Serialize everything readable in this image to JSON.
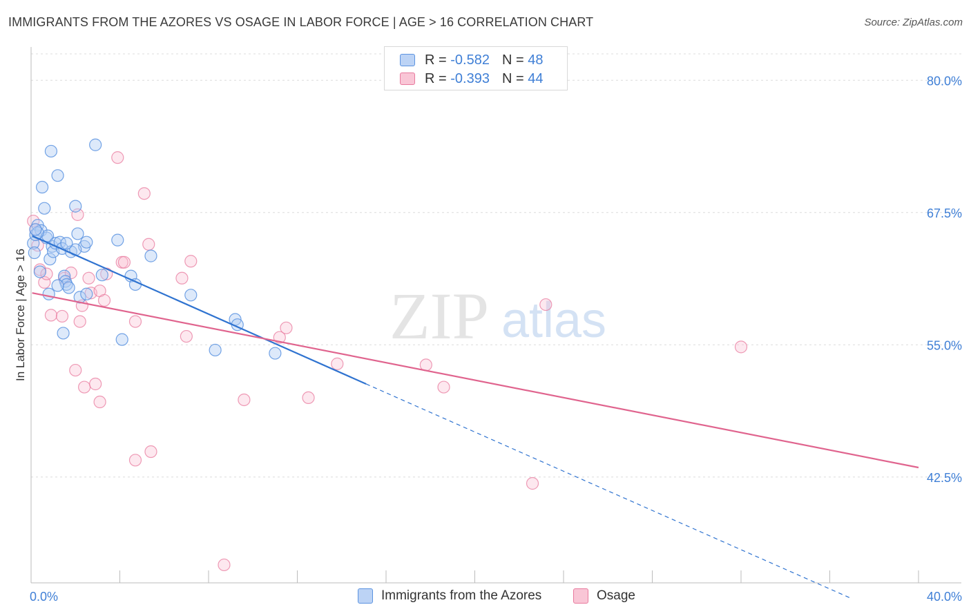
{
  "title": "IMMIGRANTS FROM THE AZORES VS OSAGE IN LABOR FORCE | AGE > 16 CORRELATION CHART",
  "source": "Source: ZipAtlas.com",
  "watermark": {
    "zip": "ZIP",
    "atlas": "atlas"
  },
  "legend_top": {
    "r_label": "R =",
    "n_label": "N =",
    "rows": [
      {
        "r": "-0.582",
        "n": "48"
      },
      {
        "r": "-0.393",
        "n": "44"
      }
    ]
  },
  "chart_data": {
    "type": "scatter",
    "title": "IMMIGRANTS FROM THE AZORES VS OSAGE IN LABOR FORCE | AGE > 16 CORRELATION CHART",
    "xlabel": "",
    "ylabel": "In Labor Force | Age > 16",
    "xlim": [
      0,
      40
    ],
    "ylim": [
      32.5,
      82.5
    ],
    "x_tick_labels": [
      "0.0%",
      "40.0%"
    ],
    "y_ticks": [
      80.0,
      67.5,
      55.0,
      42.5
    ],
    "y_tick_labels": [
      "80.0%",
      "67.5%",
      "55.0%",
      "42.5%"
    ],
    "grid": true,
    "legend_position": "top-center",
    "colors": {
      "azores": "#5b93e0",
      "osage": "#e8799d",
      "azores_line": "#2f73d0",
      "osage_line": "#e0648e",
      "tick_text": "#3f7fd6"
    },
    "series": [
      {
        "name": "Immigrants from the Azores",
        "color": "#5b93e0",
        "trend": {
          "x": [
            0.05,
            15.1
          ],
          "y": [
            65.3,
            51.3
          ],
          "dashed_to": [
            37.0,
            31.0
          ]
        },
        "points": [
          [
            0.1,
            64.6
          ],
          [
            0.15,
            63.7
          ],
          [
            0.2,
            65.4
          ],
          [
            0.3,
            66.3
          ],
          [
            0.4,
            61.9
          ],
          [
            0.45,
            65.8
          ],
          [
            0.5,
            69.9
          ],
          [
            0.6,
            67.9
          ],
          [
            0.7,
            65.1
          ],
          [
            0.75,
            65.3
          ],
          [
            0.8,
            59.8
          ],
          [
            0.85,
            63.1
          ],
          [
            0.9,
            73.3
          ],
          [
            0.95,
            64.3
          ],
          [
            1.0,
            63.8
          ],
          [
            1.1,
            64.6
          ],
          [
            1.2,
            71.0
          ],
          [
            1.3,
            64.7
          ],
          [
            1.4,
            64.1
          ],
          [
            1.45,
            56.1
          ],
          [
            1.5,
            61.5
          ],
          [
            1.55,
            61.0
          ],
          [
            1.6,
            60.7
          ],
          [
            1.7,
            60.4
          ],
          [
            1.8,
            63.8
          ],
          [
            2.0,
            68.1
          ],
          [
            2.1,
            65.5
          ],
          [
            2.2,
            59.5
          ],
          [
            2.4,
            64.3
          ],
          [
            2.5,
            64.7
          ],
          [
            2.5,
            59.8
          ],
          [
            2.9,
            73.9
          ],
          [
            3.2,
            61.6
          ],
          [
            3.9,
            64.9
          ],
          [
            4.1,
            55.5
          ],
          [
            4.5,
            61.5
          ],
          [
            4.7,
            60.7
          ],
          [
            5.4,
            63.4
          ],
          [
            7.2,
            59.7
          ],
          [
            8.3,
            54.5
          ],
          [
            9.2,
            57.4
          ],
          [
            9.3,
            56.9
          ],
          [
            11.0,
            54.2
          ],
          [
            0.3,
            65.6
          ],
          [
            1.2,
            60.6
          ],
          [
            0.2,
            65.9
          ],
          [
            2.0,
            64.0
          ],
          [
            1.6,
            64.6
          ]
        ]
      },
      {
        "name": "Osage",
        "color": "#e8799d",
        "trend": {
          "x": [
            0.05,
            40.0
          ],
          "y": [
            59.9,
            43.4
          ]
        },
        "points": [
          [
            0.1,
            66.7
          ],
          [
            0.3,
            64.4
          ],
          [
            0.4,
            62.1
          ],
          [
            0.6,
            60.9
          ],
          [
            0.7,
            61.7
          ],
          [
            0.9,
            57.8
          ],
          [
            1.4,
            57.7
          ],
          [
            1.5,
            61.3
          ],
          [
            1.8,
            61.8
          ],
          [
            2.0,
            52.6
          ],
          [
            2.1,
            67.3
          ],
          [
            2.2,
            57.2
          ],
          [
            2.3,
            58.7
          ],
          [
            2.4,
            51.0
          ],
          [
            2.6,
            61.3
          ],
          [
            2.7,
            59.9
          ],
          [
            2.9,
            51.3
          ],
          [
            3.1,
            60.1
          ],
          [
            3.1,
            49.6
          ],
          [
            3.3,
            59.2
          ],
          [
            3.4,
            61.7
          ],
          [
            3.9,
            72.7
          ],
          [
            4.1,
            62.8
          ],
          [
            4.2,
            62.8
          ],
          [
            4.7,
            57.2
          ],
          [
            4.7,
            44.1
          ],
          [
            5.1,
            69.3
          ],
          [
            5.3,
            64.5
          ],
          [
            5.4,
            44.9
          ],
          [
            6.8,
            61.3
          ],
          [
            7.0,
            55.8
          ],
          [
            7.2,
            62.9
          ],
          [
            8.7,
            34.2
          ],
          [
            9.6,
            49.8
          ],
          [
            11.2,
            55.7
          ],
          [
            11.5,
            56.6
          ],
          [
            12.5,
            50.0
          ],
          [
            13.8,
            53.2
          ],
          [
            17.8,
            53.1
          ],
          [
            18.6,
            51.0
          ],
          [
            22.6,
            41.9
          ],
          [
            23.2,
            58.8
          ],
          [
            32.0,
            54.8
          ],
          [
            0.2,
            65.9
          ]
        ]
      }
    ]
  },
  "legend_bottom": [
    {
      "label": "Immigrants from the Azores"
    },
    {
      "label": "Osage"
    }
  ]
}
